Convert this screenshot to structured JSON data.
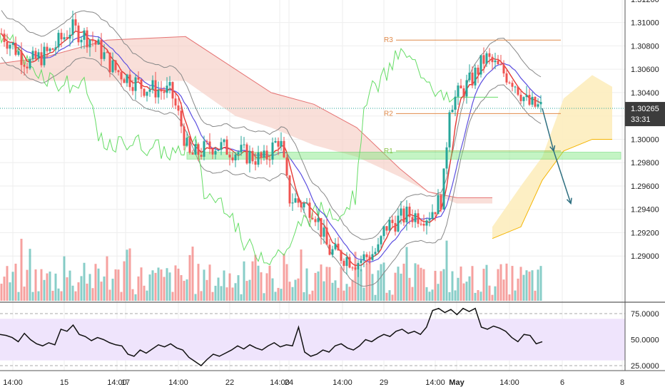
{
  "chart_data": [
    {
      "type": "candlestick",
      "panel": "price",
      "y_ticks": [
        "1.31200",
        "1.31000",
        "1.30800",
        "1.30600",
        "1.30400",
        "1.30200",
        "1.30000",
        "1.29800",
        "1.29600",
        "1.29400",
        "1.29200",
        "1.29000"
      ],
      "ylim": [
        1.2884,
        1.3134
      ],
      "x_ticks": [
        "14:00",
        "15",
        "14:00",
        "17",
        "14:00",
        "22",
        "14:00",
        "24",
        "14:00",
        "29",
        "14:00",
        "May",
        "14:00",
        "6",
        "8"
      ],
      "current_price": "1.30265",
      "countdown": "33:31",
      "levels": [
        {
          "name": "R3",
          "value": 1.3085,
          "color": "#e08a4a"
        },
        {
          "name": "R2",
          "value": 1.3022,
          "color": "#e08a4a"
        },
        {
          "name": "R1",
          "value": 1.299,
          "color": "#8bc34a"
        }
      ],
      "support_zone": [
        1.2983,
        1.2989
      ],
      "last_close": 1.30265,
      "projection": [
        1.30265,
        1.299,
        1.2945
      ],
      "indicators": [
        "Ichimoku cloud",
        "Bollinger Bands",
        "Volume"
      ]
    },
    {
      "type": "line",
      "panel": "rsi",
      "y_ticks": [
        "75.0000",
        "50.0000",
        "25.0000"
      ],
      "ylim": [
        20,
        82
      ],
      "band": [
        30,
        70
      ],
      "values": [
        55,
        54,
        52,
        48,
        56,
        50,
        46,
        44,
        47,
        45,
        60,
        58,
        64,
        55,
        53,
        49,
        52,
        50,
        47,
        45,
        44,
        36,
        34,
        40,
        37,
        41,
        45,
        43,
        46,
        42,
        40,
        33,
        29,
        25,
        31,
        36,
        34,
        37,
        40,
        44,
        41,
        45,
        42,
        40,
        44,
        47,
        43,
        45,
        44,
        62,
        38,
        34,
        36,
        40,
        38,
        44,
        46,
        42,
        40,
        44,
        50,
        48,
        52,
        55,
        53,
        58,
        60,
        56,
        58,
        55,
        62,
        78,
        80,
        76,
        79,
        74,
        80,
        77,
        80,
        62,
        60,
        63,
        61,
        58,
        52,
        48,
        55,
        54,
        46,
        48
      ]
    }
  ],
  "colors": {
    "up": "#26a69a",
    "down": "#ef5350",
    "tenkan": "#e53935",
    "kijun": "#5c4fe0",
    "chikou": "#66dd66",
    "bb": "#888888",
    "cloud_bear": "#f6d2c9",
    "cloud_bull": "#fdedbe",
    "rsi_bg": "#efe4fc",
    "support": "#7ee87e",
    "arrow": "#2e6f80"
  }
}
